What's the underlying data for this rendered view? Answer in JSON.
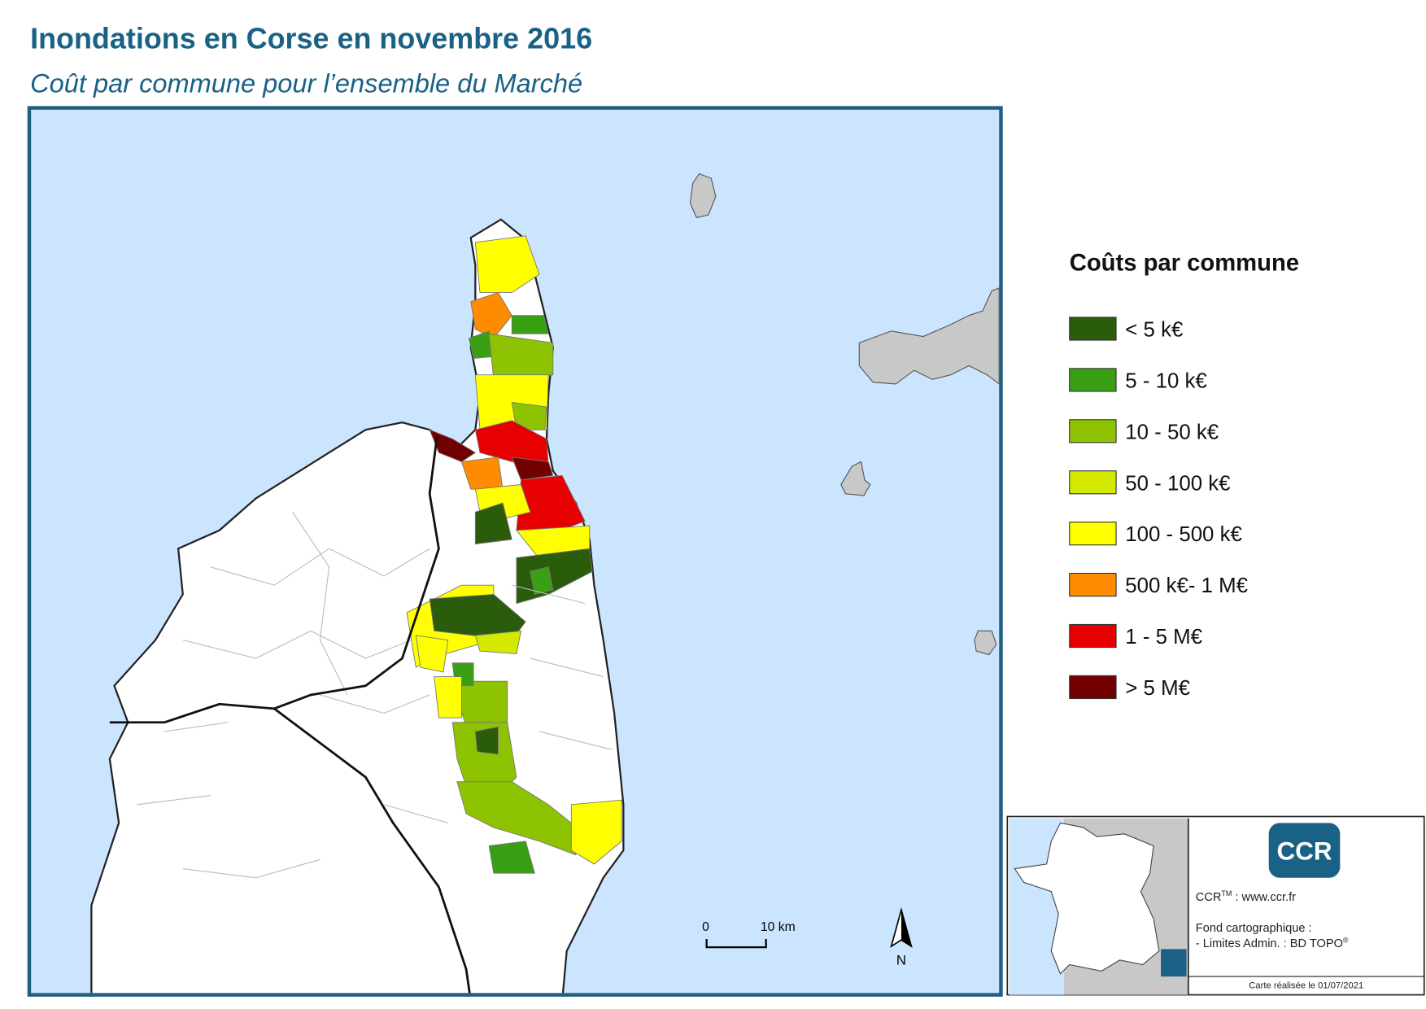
{
  "header": {
    "title": "Inondations en Corse en novembre 2016",
    "subtitle": "Coût par commune pour l’ensemble du Marché"
  },
  "legend": {
    "title": "Coûts par commune",
    "items": [
      {
        "label": "< 5 k€",
        "color": "#2b5c0c"
      },
      {
        "label": "5 - 10 k€",
        "color": "#38a012"
      },
      {
        "label": "10 - 50 k€",
        "color": "#8dc300"
      },
      {
        "label": "50 - 100 k€",
        "color": "#d5e800"
      },
      {
        "label": "100 - 500 k€",
        "color": "#ffff00"
      },
      {
        "label": "500 k€- 1 M€",
        "color": "#ff8c00"
      },
      {
        "label": "1 - 5 M€",
        "color": "#e60000"
      },
      {
        "label": "> 5 M€",
        "color": "#730000"
      }
    ]
  },
  "scale_bar": {
    "start": "0",
    "end": "10 km"
  },
  "north_arrow": "N",
  "credits": {
    "logo": "CCR",
    "site_name": "CCR",
    "site_sup": "TM",
    "site_url": " : www.ccr.fr",
    "basemap_title": "Fond cartographique :",
    "basemap_source": "- Limites Admin. : BD TOPO",
    "basemap_sup": "®",
    "date": "Carte réalisée le 01/07/2021"
  }
}
